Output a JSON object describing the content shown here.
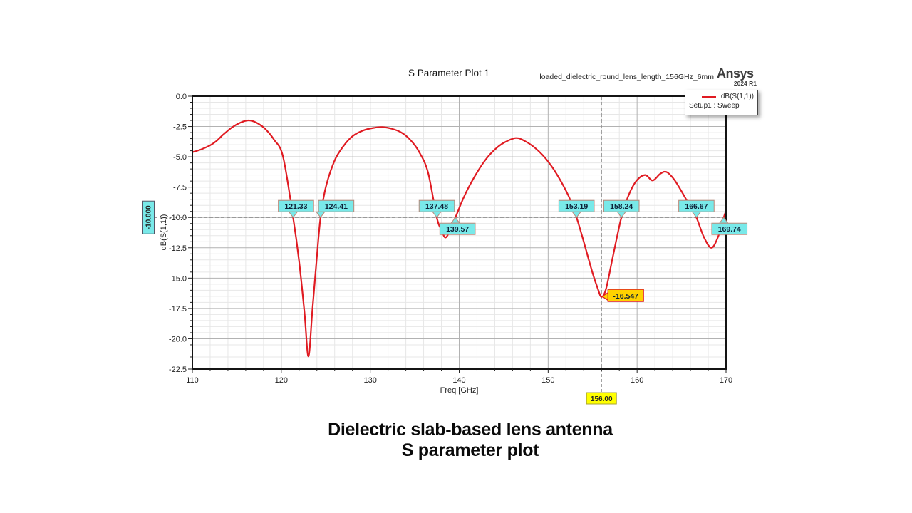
{
  "header": {
    "title": "S Parameter Plot 1",
    "design_name": "loaded_dielectric_round_lens_length_156GHz_6mm",
    "brand": "Ansys",
    "brand_version": "2024 R1"
  },
  "legend": {
    "trace_label": "dB(S(1,1))",
    "setup_label": "Setup1 : Sweep"
  },
  "caption": {
    "line1": "Dielectric slab-based lens antenna",
    "line2": "S parameter plot"
  },
  "chart_data": {
    "type": "line",
    "title": "S Parameter Plot 1",
    "xlabel": "Freq [GHz]",
    "ylabel": "dB(S(1,1))",
    "xlim": [
      110,
      170
    ],
    "ylim": [
      -22.5,
      0
    ],
    "x_major_step": 10,
    "x_minor_step": 2,
    "y_major_step": 2.5,
    "y_minor_step": 0.5,
    "x_ticks": [
      "110",
      "120",
      "130",
      "140",
      "150",
      "160",
      "170"
    ],
    "y_ticks": [
      "0.0",
      "-2.5",
      "-5.0",
      "-7.5",
      "-10.0",
      "-12.5",
      "-15.0",
      "-17.5",
      "-20.0",
      "-22.5"
    ],
    "legend_position": "top-right",
    "grid": true,
    "series": [
      {
        "name": "dB(S(1,1))",
        "points": [
          [
            110.0,
            -4.62
          ],
          [
            111.0,
            -4.38
          ],
          [
            112.0,
            -4.05
          ],
          [
            112.7,
            -3.7
          ],
          [
            113.5,
            -3.15
          ],
          [
            114.5,
            -2.55
          ],
          [
            115.4,
            -2.18
          ],
          [
            116.3,
            -2.0
          ],
          [
            117.2,
            -2.18
          ],
          [
            118.2,
            -2.7
          ],
          [
            119.2,
            -3.6
          ],
          [
            120.2,
            -5.0
          ],
          [
            121.33,
            -10.0
          ],
          [
            122.0,
            -13.6
          ],
          [
            122.6,
            -17.8
          ],
          [
            123.05,
            -21.45
          ],
          [
            123.5,
            -17.6
          ],
          [
            124.0,
            -13.2
          ],
          [
            124.41,
            -10.0
          ],
          [
            125.0,
            -7.5
          ],
          [
            126.0,
            -5.3
          ],
          [
            127.0,
            -4.1
          ],
          [
            128.0,
            -3.3
          ],
          [
            129.3,
            -2.8
          ],
          [
            130.5,
            -2.6
          ],
          [
            131.4,
            -2.55
          ],
          [
            132.5,
            -2.7
          ],
          [
            133.5,
            -3.0
          ],
          [
            134.5,
            -3.6
          ],
          [
            135.5,
            -4.6
          ],
          [
            136.5,
            -6.3
          ],
          [
            137.48,
            -10.0
          ],
          [
            138.0,
            -11.0
          ],
          [
            138.55,
            -11.62
          ],
          [
            139.57,
            -10.0
          ],
          [
            140.3,
            -8.7
          ],
          [
            141.0,
            -7.6
          ],
          [
            142.0,
            -6.3
          ],
          [
            143.0,
            -5.2
          ],
          [
            144.0,
            -4.4
          ],
          [
            145.0,
            -3.85
          ],
          [
            146.4,
            -3.45
          ],
          [
            147.5,
            -3.75
          ],
          [
            148.5,
            -4.25
          ],
          [
            149.5,
            -4.95
          ],
          [
            150.5,
            -5.9
          ],
          [
            151.5,
            -7.1
          ],
          [
            152.4,
            -8.4
          ],
          [
            153.19,
            -10.0
          ],
          [
            154.0,
            -12.0
          ],
          [
            155.0,
            -14.6
          ],
          [
            155.6,
            -15.9
          ],
          [
            156.0,
            -16.547
          ],
          [
            156.5,
            -15.9
          ],
          [
            157.2,
            -13.5
          ],
          [
            157.8,
            -11.4
          ],
          [
            158.24,
            -10.0
          ],
          [
            159.0,
            -8.25
          ],
          [
            159.9,
            -7.0
          ],
          [
            160.9,
            -6.5
          ],
          [
            161.75,
            -6.95
          ],
          [
            162.6,
            -6.4
          ],
          [
            163.3,
            -6.25
          ],
          [
            164.2,
            -6.9
          ],
          [
            165.2,
            -8.1
          ],
          [
            166.0,
            -9.15
          ],
          [
            166.67,
            -10.0
          ],
          [
            167.5,
            -11.6
          ],
          [
            168.35,
            -12.5
          ],
          [
            169.1,
            -11.6
          ],
          [
            169.74,
            -10.0
          ],
          [
            170.0,
            -9.45
          ]
        ]
      }
    ],
    "ref_lines": {
      "horizontal": {
        "value": -10,
        "label": "-10.000"
      },
      "vertical": {
        "value": 156,
        "label": "156.00"
      }
    },
    "band_markers": [
      {
        "freq": 121.33,
        "label": "121.33",
        "placement": "above",
        "dx": 4
      },
      {
        "freq": 124.41,
        "label": "124.41",
        "placement": "above",
        "dx": 22
      },
      {
        "freq": 137.48,
        "label": "137.48",
        "placement": "above",
        "dx": 0
      },
      {
        "freq": 139.57,
        "label": "139.57",
        "placement": "below",
        "dx": 3
      },
      {
        "freq": 153.19,
        "label": "153.19",
        "placement": "above",
        "dx": 0
      },
      {
        "freq": 158.24,
        "label": "158.24",
        "placement": "above",
        "dx": 0
      },
      {
        "freq": 166.67,
        "label": "166.67",
        "placement": "above",
        "dx": 0
      },
      {
        "freq": 169.74,
        "label": "169.74",
        "placement": "below",
        "dx": 8
      }
    ],
    "min_marker": {
      "freq": 156.0,
      "value": -16.547,
      "label": "-16.547"
    },
    "colors": {
      "curve": "#e01b22",
      "grid_major": "#b2b2b2",
      "grid_minor": "#e7e7e7",
      "frame": "#141414",
      "ref_dash": "#909090",
      "marker_fill": "#79e9e9",
      "marker_border": "#b98878",
      "min_fill": "#ffd200",
      "min_border": "#e02020",
      "x_ref_fill": "#ffff00",
      "x_ref_border": "#a8a430"
    }
  }
}
